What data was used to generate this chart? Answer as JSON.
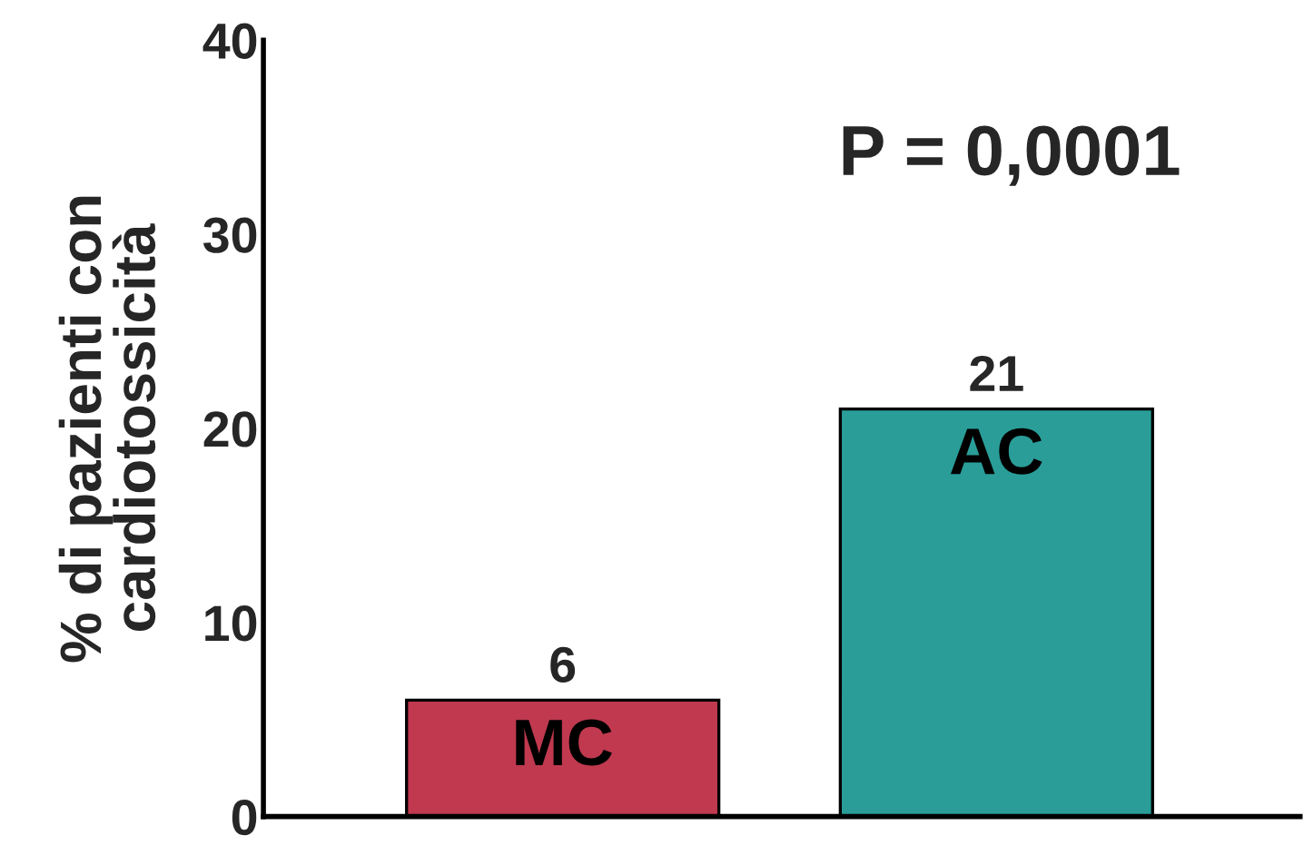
{
  "chart_data": {
    "type": "bar",
    "ylabel": "% di pazienti con\ncardiotossicità",
    "categories": [
      "MC",
      "AC"
    ],
    "values": [
      6,
      21
    ],
    "colors": [
      "#c0394f",
      "#2a9d98"
    ],
    "ylim": [
      0,
      40
    ],
    "yticks": [
      0,
      10,
      20,
      30,
      40
    ],
    "grid": false,
    "data_labels": true,
    "annotations": [
      "P = 0,0001"
    ]
  }
}
